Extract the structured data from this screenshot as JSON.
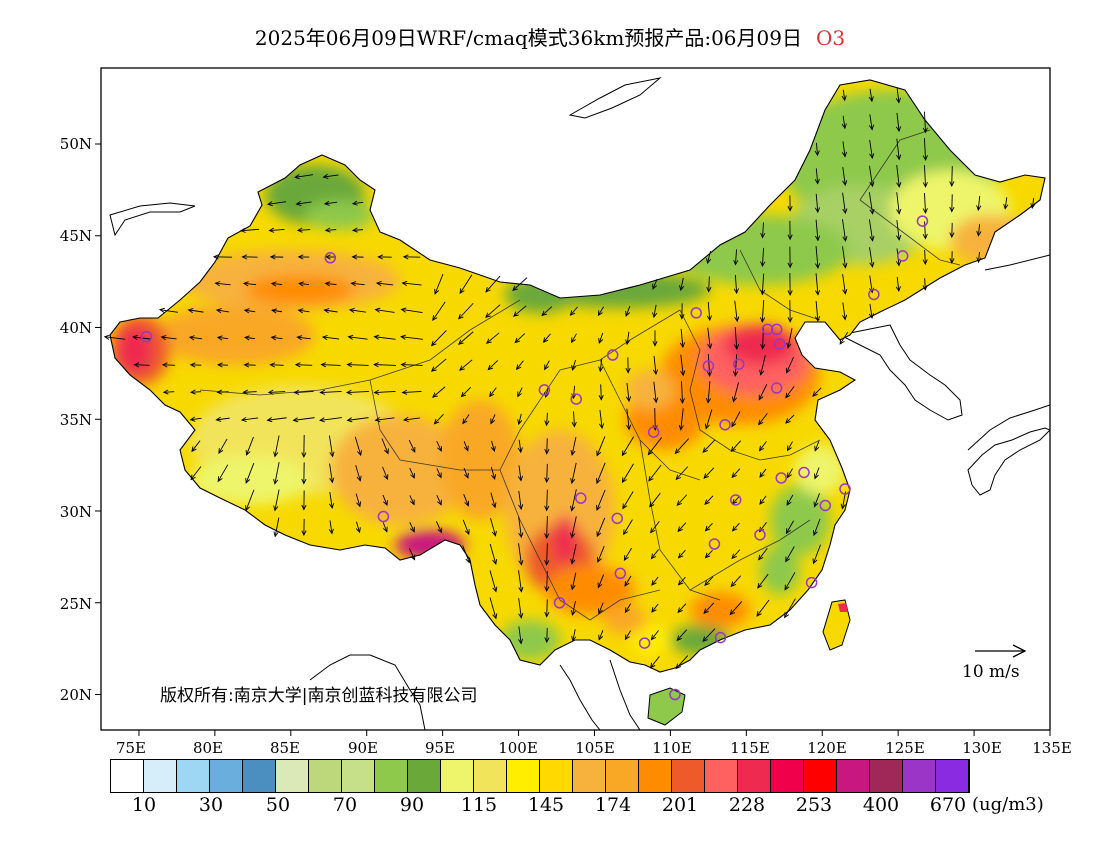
{
  "title": {
    "main": "2025年06月09日WRF/cmaq模式36km预报产品:06月09日",
    "species": "O3"
  },
  "axes": {
    "lat_ticks": [
      "50N",
      "45N",
      "40N",
      "35N",
      "30N",
      "25N",
      "20N"
    ],
    "lon_ticks": [
      "75E",
      "80E",
      "85E",
      "90E",
      "95E",
      "100E",
      "105E",
      "110E",
      "115E",
      "120E",
      "125E",
      "130E",
      "135E"
    ]
  },
  "copyright": "版权所有:南京大学|南京创蓝科技有限公司",
  "wind_scale": {
    "label": "10 m/s",
    "speed_ms": 10
  },
  "colorbar": {
    "colors": [
      "#ffffff",
      "#d6eef9",
      "#9dd7f4",
      "#6aaedd",
      "#4a8fc0",
      "#dbe9b8",
      "#bcd87a",
      "#c6e08a",
      "#8ec94c",
      "#6aa83a",
      "#eef56a",
      "#f2e45a",
      "#ffee00",
      "#ffd900",
      "#f7b23e",
      "#f9a825",
      "#ff8c00",
      "#ee5a2a",
      "#ff6060",
      "#ee2a50",
      "#f0004a",
      "#ff0000",
      "#c81880",
      "#a02858",
      "#9a35c8",
      "#8a2be2"
    ],
    "labels": [
      "10",
      "30",
      "50",
      "70",
      "90",
      "115",
      "145",
      "174",
      "201",
      "228",
      "253",
      "400",
      "670"
    ],
    "unit": "(ug/m3)"
  },
  "map_legend_colors": {
    "ocean": "#ffffff",
    "land_default": "#f7d900",
    "coastline": "#000000"
  },
  "observation_sites": [
    {
      "lon": 87.6,
      "lat": 43.8
    },
    {
      "lon": 91.1,
      "lat": 29.7
    },
    {
      "lon": 101.7,
      "lat": 36.6
    },
    {
      "lon": 103.8,
      "lat": 36.1
    },
    {
      "lon": 106.2,
      "lat": 38.5
    },
    {
      "lon": 111.7,
      "lat": 40.8
    },
    {
      "lon": 112.5,
      "lat": 37.9
    },
    {
      "lon": 114.5,
      "lat": 38.0
    },
    {
      "lon": 116.4,
      "lat": 39.9
    },
    {
      "lon": 117.2,
      "lat": 39.1
    },
    {
      "lon": 117.0,
      "lat": 36.7
    },
    {
      "lon": 113.6,
      "lat": 34.7
    },
    {
      "lon": 108.9,
      "lat": 34.3
    },
    {
      "lon": 104.1,
      "lat": 30.7
    },
    {
      "lon": 106.5,
      "lat": 29.6
    },
    {
      "lon": 114.3,
      "lat": 30.6
    },
    {
      "lon": 117.3,
      "lat": 31.8
    },
    {
      "lon": 118.8,
      "lat": 32.1
    },
    {
      "lon": 121.5,
      "lat": 31.2
    },
    {
      "lon": 120.2,
      "lat": 30.3
    },
    {
      "lon": 115.9,
      "lat": 28.7
    },
    {
      "lon": 112.9,
      "lat": 28.2
    },
    {
      "lon": 119.3,
      "lat": 26.1
    },
    {
      "lon": 106.7,
      "lat": 26.6
    },
    {
      "lon": 102.7,
      "lat": 25.0
    },
    {
      "lon": 113.3,
      "lat": 23.1
    },
    {
      "lon": 108.3,
      "lat": 22.8
    },
    {
      "lon": 110.3,
      "lat": 20.0
    },
    {
      "lon": 123.4,
      "lat": 41.8
    },
    {
      "lon": 125.3,
      "lat": 43.9
    },
    {
      "lon": 126.6,
      "lat": 45.8
    },
    {
      "lon": 75.5,
      "lat": 39.5
    },
    {
      "lon": 117.0,
      "lat": 39.9
    }
  ]
}
